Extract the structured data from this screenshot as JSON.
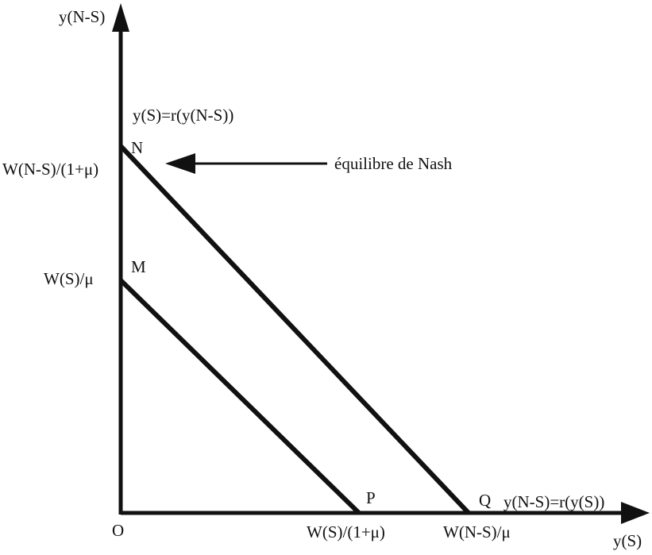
{
  "axes": {
    "y_axis_label": "y(N-S)",
    "x_axis_label": "y(S)",
    "origin_label": "O"
  },
  "points": {
    "N": "N",
    "M": "M",
    "P": "P",
    "Q": "Q"
  },
  "intercepts": {
    "n_value": "W(N-S)/(1+μ)",
    "m_value": "W(S)/μ",
    "p_value": "W(S)/(1+μ)",
    "q_value": "W(N-S)/μ"
  },
  "reaction_functions": {
    "vertical": "y(S)=r(y(N-S))",
    "horizontal": "y(N-S)=r(y(S))"
  },
  "annotation": {
    "nash": "équilibre de Nash"
  },
  "colors": {
    "ink": "#111111",
    "background": "#ffffff"
  }
}
